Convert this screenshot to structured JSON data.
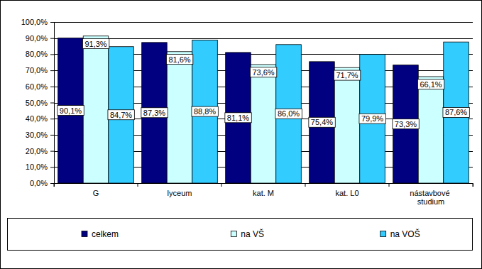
{
  "chart_data": {
    "type": "bar",
    "categories": [
      "G",
      "lyceum",
      "kat. M",
      "kat. L0",
      "nástavbové studium"
    ],
    "series": [
      {
        "name": "celkem",
        "color": "#000080",
        "values": [
          90.1,
          87.3,
          81.1,
          75.4,
          73.3
        ],
        "value_labels": [
          "90,1%",
          "87,3%",
          "81,1%",
          "75,4%",
          "73,3%"
        ]
      },
      {
        "name": "na VŠ",
        "color": "#ccffff",
        "values": [
          91.3,
          81.6,
          73.6,
          71.7,
          66.1
        ],
        "value_labels": [
          "91,3%",
          "81,6%",
          "73,6%",
          "71,7%",
          "66,1%"
        ]
      },
      {
        "name": "na VOŠ",
        "color": "#33ccff",
        "values": [
          84.7,
          88.8,
          86.0,
          79.9,
          87.6
        ],
        "value_labels": [
          "84,7%",
          "88,8%",
          "86,0%",
          "79,9%",
          "87,6%"
        ]
      }
    ],
    "ylim": [
      0,
      100
    ],
    "yticks": [
      {
        "value": 0,
        "label": "0,0%"
      },
      {
        "value": 10,
        "label": "10,0%"
      },
      {
        "value": 20,
        "label": "20,0%"
      },
      {
        "value": 30,
        "label": "30,0%"
      },
      {
        "value": 40,
        "label": "40,0%"
      },
      {
        "value": 50,
        "label": "50,0%"
      },
      {
        "value": 60,
        "label": "60,0%"
      },
      {
        "value": 70,
        "label": "70,0%"
      },
      {
        "value": 80,
        "label": "80,0%"
      },
      {
        "value": 90,
        "label": "90,0%"
      },
      {
        "value": 100,
        "label": "100,0%"
      }
    ],
    "grid": true,
    "legend": "bottom",
    "data_labels": true
  }
}
